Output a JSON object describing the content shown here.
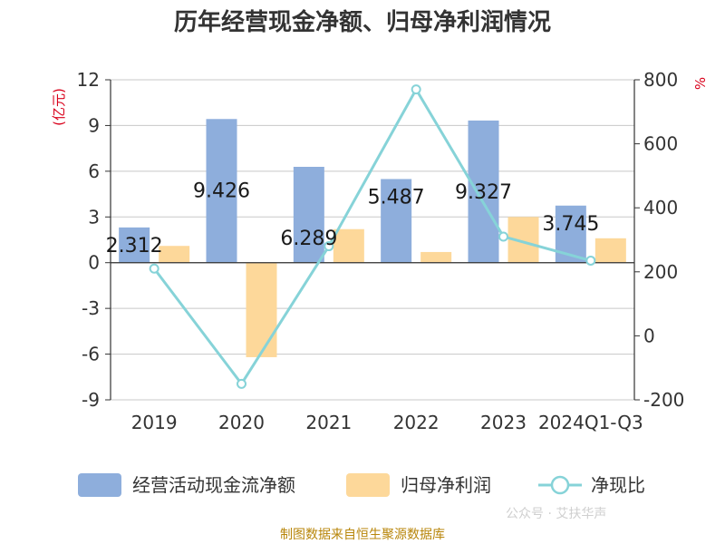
{
  "source_note": "制图数据来自恒生聚源数据库",
  "watermark": "公众号 · 艾扶华声",
  "chart_data": {
    "type": "bar",
    "title": "历年经营现金净额、归母净利润情况",
    "categories": [
      "2019",
      "2020",
      "2021",
      "2022",
      "2023",
      "2024Q1-Q3"
    ],
    "y_left": {
      "unit_label": "(亿元)",
      "ticks": [
        12,
        9,
        6,
        3,
        0,
        -3,
        -6,
        -9
      ],
      "ylim": [
        -9,
        12
      ]
    },
    "y_right": {
      "unit_label": "%",
      "ticks": [
        800,
        600,
        400,
        200,
        0,
        -200
      ],
      "ylim": [
        -200,
        800
      ]
    },
    "series": [
      {
        "name": "经营活动现金流净额",
        "type": "bar",
        "axis": "left",
        "color": "#8eaedc",
        "values": [
          2.312,
          9.426,
          6.289,
          5.487,
          9.327,
          3.745
        ],
        "labels": [
          "2.312",
          "9.426",
          "6.289",
          "5.487",
          "9.327",
          "3.745"
        ]
      },
      {
        "name": "归母净利润",
        "type": "bar",
        "axis": "left",
        "color": "#fdd89a",
        "values": [
          1.1,
          -6.2,
          2.2,
          0.7,
          3.0,
          1.6
        ]
      },
      {
        "name": "净现比",
        "type": "line",
        "axis": "right",
        "color": "#86d3d8",
        "values": [
          210,
          -150,
          280,
          770,
          310,
          235
        ]
      }
    ],
    "grid": true,
    "legend": "bottom"
  }
}
